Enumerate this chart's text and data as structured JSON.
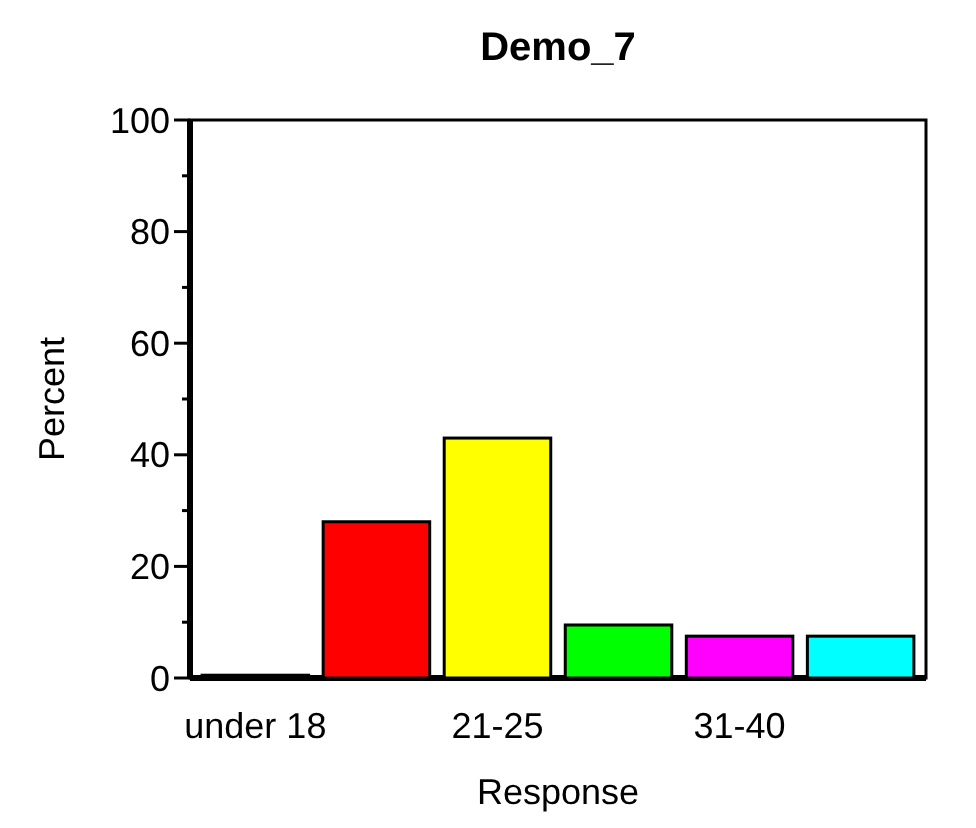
{
  "chart_data": {
    "type": "bar",
    "title": "Demo_7",
    "xlabel": "Response",
    "ylabel": "Percent",
    "categories": [
      "under 18",
      null,
      "21-25",
      null,
      "31-40",
      null
    ],
    "values": [
      0.5,
      28,
      43,
      9.5,
      7.5,
      7.5
    ],
    "colors": [
      "#0000cc",
      "#ff0000",
      "#ffff00",
      "#00ff00",
      "#ff00ff",
      "#00ffff"
    ],
    "ylim": [
      0,
      100
    ],
    "yticks": [
      0,
      {
        "value": 10,
        "label": null
      },
      20,
      {
        "value": 30,
        "label": null
      },
      40,
      {
        "value": 50,
        "label": null
      },
      60,
      {
        "value": 70,
        "label": null
      },
      80,
      {
        "value": 90,
        "label": null
      },
      100
    ],
    "grid": false
  }
}
